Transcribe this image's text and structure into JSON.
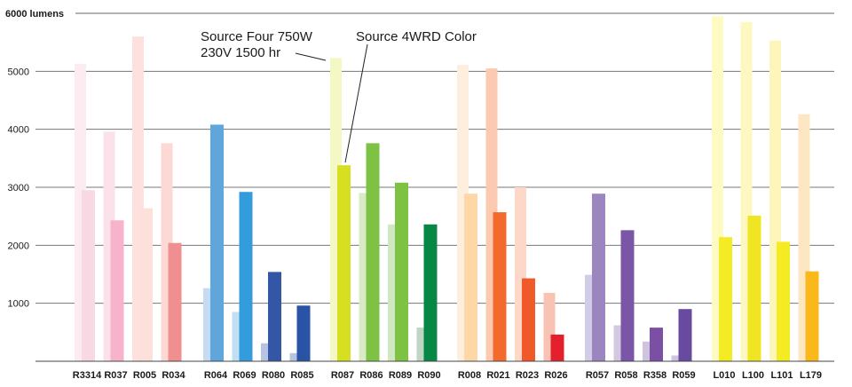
{
  "chart_data": {
    "type": "bar",
    "ylim": [
      0,
      6000
    ],
    "yticks": [
      1000,
      2000,
      3000,
      4000,
      5000
    ],
    "ytick_labels": [
      "1000",
      "2000",
      "3000",
      "4000",
      "5000"
    ],
    "ytop_label": "6000 lumens",
    "grid": true,
    "annotations": [
      {
        "text_lines": [
          "Source Four 750W",
          "230V 1500 hr"
        ],
        "points_to": "R087 Source Four 750W"
      },
      {
        "text_lines": [
          "Source 4WRD Color"
        ],
        "points_to": "R087 Source 4WRD Color"
      }
    ],
    "series_names_hidden": [
      "Source Four 750W",
      "Source 4WRD Color"
    ],
    "categories": [
      "R3314",
      "R037",
      "R005",
      "R034",
      "R064",
      "R069",
      "R080",
      "R085",
      "R087",
      "R086",
      "R089",
      "R090",
      "R008",
      "R021",
      "R023",
      "R026",
      "R057",
      "R058",
      "R358",
      "R059",
      "L010",
      "L100",
      "L101",
      "L179"
    ],
    "groups": [
      [
        0,
        1,
        2,
        3
      ],
      [
        4,
        5,
        6,
        7
      ],
      [
        8,
        9,
        10,
        11
      ],
      [
        12,
        13,
        14,
        15
      ],
      [
        16,
        17,
        18,
        19
      ],
      [
        20,
        21,
        22,
        23
      ]
    ],
    "series": [
      {
        "key": "source_four",
        "values": [
          5130,
          3960,
          5600,
          3760,
          1260,
          850,
          310,
          140,
          5230,
          2900,
          2360,
          580,
          5110,
          5050,
          3000,
          1180,
          1490,
          620,
          340,
          100,
          5950,
          5850,
          5530,
          4260
        ],
        "colors": [
          "#fcebf0",
          "#fbe2ea",
          "#fde1de",
          "#fcd9d5",
          "#c5dbf1",
          "#c1def3",
          "#b8c3e2",
          "#b8c3df",
          "#f4f8c5",
          "#d8ebc5",
          "#d0e7c1",
          "#bfd6c5",
          "#fdeede",
          "#fccab0",
          "#fdd7c8",
          "#f8c3b3",
          "#d2cde6",
          "#d2c9e1",
          "#cec4e0",
          "#cbc7e3",
          "#fdfbc3",
          "#fcf8c0",
          "#fdf6bb",
          "#fde6c2"
        ]
      },
      {
        "key": "source_4wrd",
        "values": [
          2950,
          2430,
          2640,
          2040,
          4080,
          2920,
          1540,
          960,
          3380,
          3760,
          3080,
          2360,
          2890,
          2570,
          1430,
          460,
          2890,
          2260,
          580,
          900,
          2140,
          2510,
          2060,
          1550
        ],
        "colors": [
          "#f8d8e2",
          "#f7b3cb",
          "#fce0da",
          "#f08f8f",
          "#5ea6dc",
          "#339cdc",
          "#3356a7",
          "#2953a5",
          "#d7df23",
          "#7dc242",
          "#7dc242",
          "#078746",
          "#fdd8a6",
          "#f26b2d",
          "#f05a28",
          "#e5202e",
          "#9b86c0",
          "#7c56a6",
          "#7b4fa3",
          "#684ba1",
          "#f3eb23",
          "#f0e523",
          "#f4eb23",
          "#fbb81a"
        ]
      }
    ]
  }
}
